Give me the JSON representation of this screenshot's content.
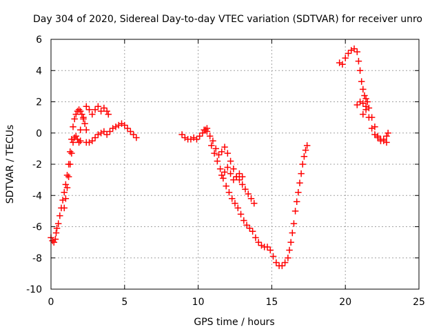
{
  "chart_data": {
    "type": "scatter",
    "title": "Day 304 of 2020, Sidereal Day-to-day VTEC variation (SDTVAR) for receiver unro",
    "xlabel": "GPS time / hours",
    "ylabel": "SDTVAR / TECUs",
    "xlim": [
      0,
      25
    ],
    "ylim": [
      -10,
      6
    ],
    "xticks": [
      0,
      5,
      10,
      15,
      20,
      25
    ],
    "yticks": [
      -10,
      -8,
      -6,
      -4,
      -2,
      0,
      2,
      4,
      6
    ],
    "grid": true,
    "legend": "none",
    "marker": "plus",
    "series_color": "#ff0000",
    "series": [
      {
        "name": "segment-1-main",
        "x": [
          0.0,
          0.1,
          0.2,
          0.3,
          0.35,
          0.4,
          0.5,
          0.6,
          0.7,
          0.8,
          0.9,
          1.0,
          1.1,
          1.2,
          1.3,
          1.4,
          1.5,
          1.6,
          1.7,
          1.8,
          1.9,
          2.0,
          2.1,
          2.2,
          2.3,
          2.4
        ],
        "y": [
          -6.7,
          -6.9,
          -7.0,
          -6.8,
          -6.4,
          -6.1,
          -5.8,
          -5.3,
          -4.8,
          -4.3,
          -3.8,
          -3.3,
          -2.7,
          -2.0,
          -1.2,
          -0.4,
          0.4,
          0.9,
          1.2,
          1.4,
          1.5,
          1.4,
          1.2,
          0.9,
          0.6,
          0.2
        ]
      },
      {
        "name": "segment-1-lower",
        "x": [
          0.9,
          1.0,
          1.1,
          1.2,
          1.3,
          1.4,
          1.5,
          1.6,
          1.7,
          1.8,
          1.9,
          2.0
        ],
        "y": [
          -4.8,
          -4.2,
          -3.5,
          -2.8,
          -2.0,
          -1.3,
          -0.6,
          -0.3,
          -0.2,
          -0.4,
          -0.6,
          -0.5
        ]
      },
      {
        "name": "segment-1-upper",
        "x": [
          2.0,
          2.2,
          2.4,
          2.6,
          2.8,
          3.0,
          3.2,
          3.4,
          3.6,
          3.8,
          3.9
        ],
        "y": [
          0.2,
          1.0,
          1.7,
          1.5,
          1.2,
          1.5,
          1.7,
          1.4,
          1.6,
          1.4,
          1.2
        ]
      },
      {
        "name": "segment-1-middle",
        "x": [
          2.4,
          2.6,
          2.8,
          3.0,
          3.2,
          3.4,
          3.6,
          3.8,
          4.0,
          4.2,
          4.4,
          4.6,
          4.8,
          5.0,
          5.2,
          5.4,
          5.6,
          5.8
        ],
        "y": [
          -0.6,
          -0.6,
          -0.5,
          -0.3,
          -0.1,
          0.0,
          0.1,
          -0.1,
          0.1,
          0.3,
          0.4,
          0.5,
          0.6,
          0.5,
          0.3,
          0.1,
          -0.1,
          -0.3
        ]
      },
      {
        "name": "segment-2-start",
        "x": [
          8.9,
          9.1,
          9.3,
          9.5,
          9.7,
          9.9,
          10.1,
          10.3,
          10.5,
          10.6
        ],
        "y": [
          -0.1,
          -0.3,
          -0.4,
          -0.4,
          -0.3,
          -0.4,
          -0.2,
          0.0,
          0.2,
          0.3
        ]
      },
      {
        "name": "segment-2-upper-branch",
        "x": [
          10.4,
          10.6,
          10.8,
          11.0,
          11.2,
          11.4,
          11.6,
          11.8,
          12.0,
          12.2,
          12.4,
          12.6,
          12.8,
          13.0,
          13.2,
          13.4,
          13.6,
          13.8
        ],
        "y": [
          0.2,
          0.1,
          -0.2,
          -0.5,
          -1.0,
          -1.4,
          -1.2,
          -0.9,
          -1.3,
          -1.8,
          -2.3,
          -2.8,
          -3.0,
          -3.3,
          -3.6,
          -3.9,
          -4.2,
          -4.5
        ]
      },
      {
        "name": "segment-2-loop",
        "x": [
          11.6,
          11.8,
          12.0,
          12.2,
          12.4,
          12.6,
          12.8,
          13.0
        ],
        "y": [
          -2.7,
          -2.5,
          -2.2,
          -2.6,
          -3.0,
          -2.8,
          -2.6,
          -2.8
        ]
      },
      {
        "name": "segment-2-lower-branch",
        "x": [
          10.9,
          11.1,
          11.3,
          11.5,
          11.7,
          11.9,
          12.1,
          12.3,
          12.5,
          12.7,
          12.9,
          13.1,
          13.3,
          13.5,
          13.7,
          13.9,
          14.1,
          14.3,
          14.5,
          14.7,
          14.9,
          15.1,
          15.3,
          15.5,
          15.7,
          15.9,
          16.1,
          16.2,
          16.3,
          16.4,
          16.5,
          16.6,
          16.7,
          16.8,
          16.9,
          17.0,
          17.1,
          17.2,
          17.3,
          17.4
        ],
        "y": [
          -0.8,
          -1.3,
          -1.8,
          -2.3,
          -2.9,
          -3.4,
          -3.8,
          -4.2,
          -4.5,
          -4.8,
          -5.2,
          -5.6,
          -5.9,
          -6.1,
          -6.3,
          -6.7,
          -7.0,
          -7.2,
          -7.3,
          -7.3,
          -7.5,
          -7.9,
          -8.3,
          -8.5,
          -8.5,
          -8.3,
          -8.0,
          -7.5,
          -7.0,
          -6.4,
          -5.8,
          -5.0,
          -4.4,
          -3.8,
          -3.2,
          -2.6,
          -2.0,
          -1.5,
          -1.1,
          -0.8
        ]
      },
      {
        "name": "segment-3-upper",
        "x": [
          19.6,
          19.8,
          20.0,
          20.2,
          20.4,
          20.6,
          20.8,
          20.9,
          21.0,
          21.1,
          21.2,
          21.3,
          21.4,
          21.5
        ],
        "y": [
          4.5,
          4.4,
          4.8,
          5.1,
          5.3,
          5.4,
          5.2,
          4.6,
          4.0,
          3.3,
          2.8,
          2.4,
          2.2,
          2.0
        ]
      },
      {
        "name": "segment-3-middle",
        "x": [
          20.8,
          21.0,
          21.2,
          21.4,
          21.6,
          21.8,
          22.0,
          22.2,
          22.4,
          22.6,
          22.8
        ],
        "y": [
          1.8,
          2.0,
          1.9,
          1.7,
          1.6,
          1.0,
          0.4,
          -0.2,
          -0.4,
          -0.5,
          -0.6
        ]
      },
      {
        "name": "segment-3-lower",
        "x": [
          21.2,
          21.4,
          21.6,
          21.8,
          22.0,
          22.2,
          22.4,
          22.6,
          22.8,
          22.9
        ],
        "y": [
          1.2,
          1.5,
          1.0,
          0.3,
          -0.1,
          -0.3,
          -0.5,
          -0.4,
          -0.2,
          0.0
        ]
      }
    ]
  }
}
